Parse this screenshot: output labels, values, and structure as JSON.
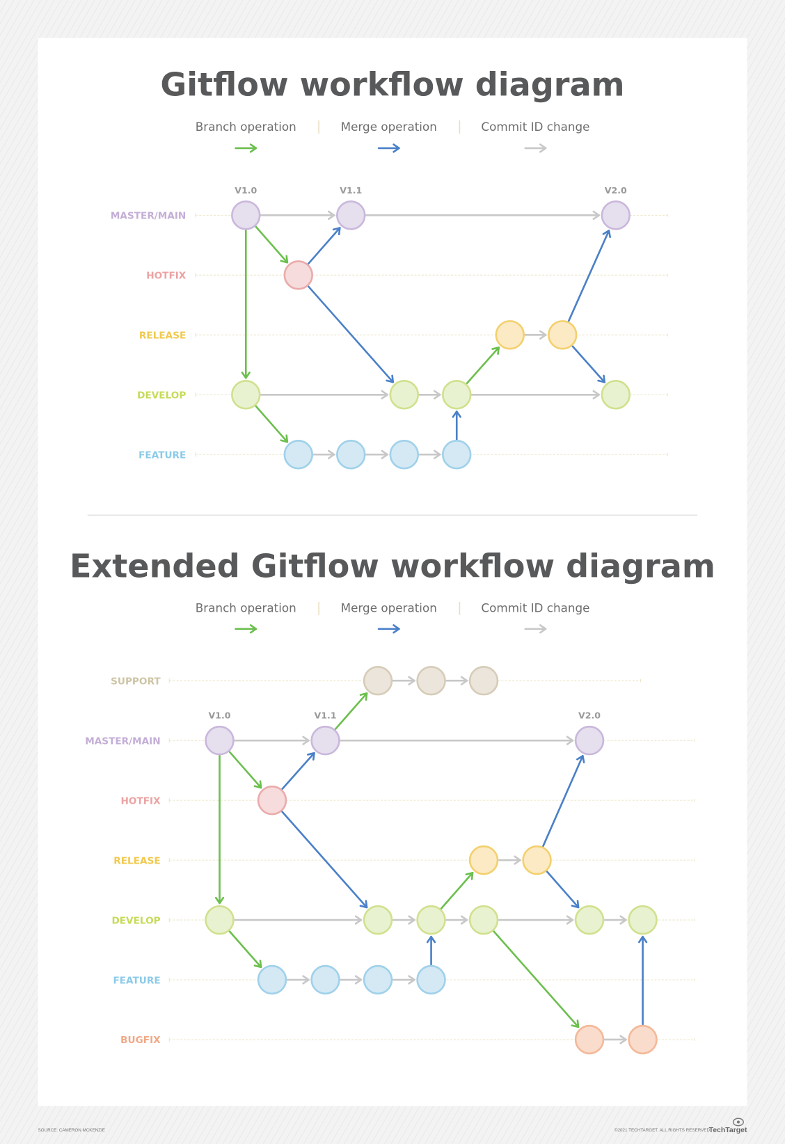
{
  "colors": {
    "branch": "#6cbf4e",
    "merge": "#4a80c8",
    "commit": "#c8c8c8",
    "title": "#58595b"
  },
  "legend": {
    "branch": "Branch operation",
    "merge": "Merge operation",
    "commit": "Commit ID change"
  },
  "branches": {
    "support": {
      "label": "SUPPORT",
      "text": "#cdc4a5",
      "fill": "#ebe5db",
      "stroke": "#d6ccb8"
    },
    "master": {
      "label": "MASTER/MAIN",
      "text": "#c4aed6",
      "fill": "#e6dfee",
      "stroke": "#c9b8dc"
    },
    "hotfix": {
      "label": "HOTFIX",
      "text": "#eca3a3",
      "fill": "#f6dcdc",
      "stroke": "#eaabab"
    },
    "release": {
      "label": "RELEASE",
      "text": "#f0c94e",
      "fill": "#fbeac4",
      "stroke": "#f3d06e"
    },
    "develop": {
      "label": "DEVELOP",
      "text": "#c5db58",
      "fill": "#e9f2d0",
      "stroke": "#d0e18e"
    },
    "feature": {
      "label": "FEATURE",
      "text": "#8ccbe8",
      "fill": "#d4e9f4",
      "stroke": "#a0d1ea"
    },
    "bugfix": {
      "label": "BUGFIX",
      "text": "#f0a987",
      "fill": "#fadccc",
      "stroke": "#f3b999"
    }
  },
  "diagrams": [
    {
      "title": "Gitflow workflow diagram",
      "branches": [
        "master",
        "hotfix",
        "release",
        "develop",
        "feature"
      ],
      "nodes": [
        {
          "id": "m1",
          "branch": "master",
          "tag": "V1.0"
        },
        {
          "id": "m2",
          "branch": "master",
          "tag": "V1.1"
        },
        {
          "id": "m3",
          "branch": "master",
          "tag": "V2.0"
        },
        {
          "id": "h1",
          "branch": "hotfix"
        },
        {
          "id": "r1",
          "branch": "release"
        },
        {
          "id": "r2",
          "branch": "release"
        },
        {
          "id": "d1",
          "branch": "develop"
        },
        {
          "id": "d2",
          "branch": "develop"
        },
        {
          "id": "d3",
          "branch": "develop"
        },
        {
          "id": "d4",
          "branch": "develop"
        },
        {
          "id": "f1",
          "branch": "feature"
        },
        {
          "id": "f2",
          "branch": "feature"
        },
        {
          "id": "f3",
          "branch": "feature"
        },
        {
          "id": "f4",
          "branch": "feature"
        }
      ],
      "edges": [
        [
          "m1",
          "m2",
          "commit"
        ],
        [
          "m2",
          "m3",
          "commit"
        ],
        [
          "r1",
          "r2",
          "commit"
        ],
        [
          "d1",
          "d2",
          "commit"
        ],
        [
          "d2",
          "d3",
          "commit"
        ],
        [
          "d3",
          "d4",
          "commit"
        ],
        [
          "f1",
          "f2",
          "commit"
        ],
        [
          "f2",
          "f3",
          "commit"
        ],
        [
          "f3",
          "f4",
          "commit"
        ],
        [
          "m1",
          "h1",
          "branch"
        ],
        [
          "m1",
          "d1",
          "branch"
        ],
        [
          "d3",
          "r1",
          "branch"
        ],
        [
          "d1",
          "f1",
          "branch"
        ],
        [
          "h1",
          "m2",
          "merge"
        ],
        [
          "h1",
          "d2",
          "merge"
        ],
        [
          "f4",
          "d3",
          "merge"
        ],
        [
          "r2",
          "m3",
          "merge"
        ],
        [
          "r2",
          "d4",
          "merge"
        ]
      ]
    },
    {
      "title": "Extended Gitflow workflow diagram",
      "branches": [
        "support",
        "master",
        "hotfix",
        "release",
        "develop",
        "feature",
        "bugfix"
      ],
      "nodes": [
        {
          "id": "s1",
          "branch": "support"
        },
        {
          "id": "s2",
          "branch": "support"
        },
        {
          "id": "s3",
          "branch": "support"
        },
        {
          "id": "m1",
          "branch": "master",
          "tag": "V1.0"
        },
        {
          "id": "m2",
          "branch": "master",
          "tag": "V1.1"
        },
        {
          "id": "m3",
          "branch": "master",
          "tag": "V2.0"
        },
        {
          "id": "h1",
          "branch": "hotfix"
        },
        {
          "id": "r1",
          "branch": "release"
        },
        {
          "id": "r2",
          "branch": "release"
        },
        {
          "id": "d1",
          "branch": "develop"
        },
        {
          "id": "d2",
          "branch": "develop"
        },
        {
          "id": "d3",
          "branch": "develop"
        },
        {
          "id": "d4",
          "branch": "develop"
        },
        {
          "id": "d5",
          "branch": "develop"
        },
        {
          "id": "d6",
          "branch": "develop"
        },
        {
          "id": "f1",
          "branch": "feature"
        },
        {
          "id": "f2",
          "branch": "feature"
        },
        {
          "id": "f3",
          "branch": "feature"
        },
        {
          "id": "f4",
          "branch": "feature"
        },
        {
          "id": "b1",
          "branch": "bugfix"
        },
        {
          "id": "b2",
          "branch": "bugfix"
        }
      ],
      "edges": [
        [
          "m1",
          "m2",
          "commit"
        ],
        [
          "m2",
          "m3",
          "commit"
        ],
        [
          "s1",
          "s2",
          "commit"
        ],
        [
          "s2",
          "s3",
          "commit"
        ],
        [
          "r1",
          "r2",
          "commit"
        ],
        [
          "d1",
          "d2",
          "commit"
        ],
        [
          "d2",
          "d3",
          "commit"
        ],
        [
          "d3",
          "d4",
          "commit"
        ],
        [
          "d4",
          "d5",
          "commit"
        ],
        [
          "d5",
          "d6",
          "commit"
        ],
        [
          "f1",
          "f2",
          "commit"
        ],
        [
          "f2",
          "f3",
          "commit"
        ],
        [
          "f3",
          "f4",
          "commit"
        ],
        [
          "b1",
          "b2",
          "commit"
        ],
        [
          "m2",
          "s1",
          "branch"
        ],
        [
          "m1",
          "h1",
          "branch"
        ],
        [
          "m1",
          "d1",
          "branch"
        ],
        [
          "d1",
          "f1",
          "branch"
        ],
        [
          "d3",
          "r1",
          "branch"
        ],
        [
          "d4",
          "b1",
          "branch"
        ],
        [
          "h1",
          "m2",
          "merge"
        ],
        [
          "h1",
          "d2",
          "merge"
        ],
        [
          "f4",
          "d3",
          "merge"
        ],
        [
          "r2",
          "m3",
          "merge"
        ],
        [
          "r2",
          "d5",
          "merge"
        ],
        [
          "b2",
          "d6",
          "merge"
        ]
      ]
    }
  ],
  "footer": {
    "source": "SOURCE: CAMERON MCKENZIE",
    "copyright": "©2021 TECHTARGET. ALL RIGHTS RESERVED",
    "logo": "TechTarget"
  }
}
